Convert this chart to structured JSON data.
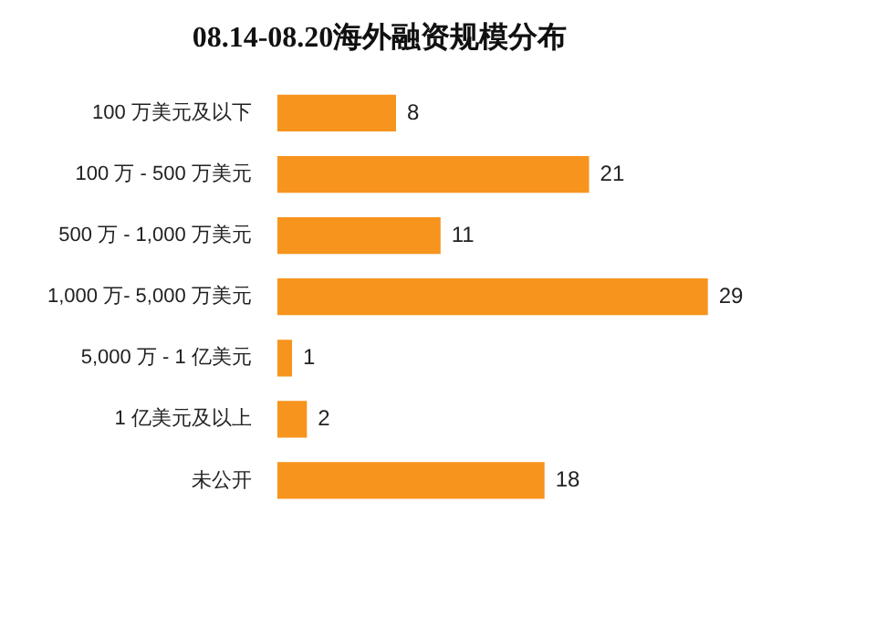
{
  "chart_data": {
    "type": "bar",
    "orientation": "horizontal",
    "title": "08.14-08.20海外融资规模分布",
    "categories": [
      "100 万美元及以下",
      "100 万 - 500 万美元",
      "500 万 - 1,000 万美元",
      "1,000 万- 5,000 万美元",
      "5,000 万 - 1 亿美元",
      "1 亿美元及以上",
      "未公开"
    ],
    "values": [
      8,
      21,
      11,
      29,
      1,
      2,
      18
    ],
    "color": "#f7941d",
    "data_labels": true
  }
}
